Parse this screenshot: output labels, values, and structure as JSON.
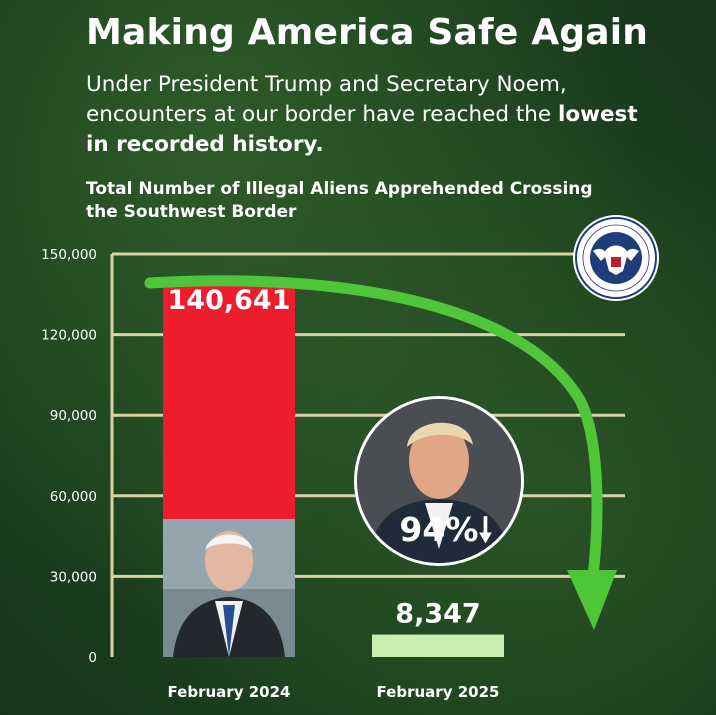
{
  "header": {
    "title": "Making America Safe Again",
    "subtitle_pre": "Under President Trump and Secretary Noem, encounters at our border have reached the ",
    "subtitle_bold": "lowest in recorded history."
  },
  "badge": {
    "decline_text": "94%"
  },
  "seal": {
    "icon": "dhs-seal-icon",
    "text": "U.S. DEPARTMENT OF HOMELAND SECURITY"
  },
  "colors": {
    "bar_2024": "#ed1c2e",
    "bar_2025": "#c9ecb0",
    "arrow": "#4fc63a",
    "grid": "#d9d2a6"
  },
  "chart_data": {
    "type": "bar",
    "title": "Total Number of Illegal Aliens Apprehended Crossing the Southwest Border",
    "categories": [
      "February 2024",
      "February 2025"
    ],
    "values": [
      140641,
      8347
    ],
    "value_labels": [
      "140,641",
      "8,347"
    ],
    "ylim": [
      0,
      150000
    ],
    "yticks": [
      0,
      30000,
      60000,
      90000,
      120000,
      150000
    ],
    "ytick_labels": [
      "0",
      "30,000",
      "60,000",
      "90,000",
      "120,000",
      "150,000"
    ],
    "grid": true,
    "xlabel": "",
    "ylabel": ""
  }
}
